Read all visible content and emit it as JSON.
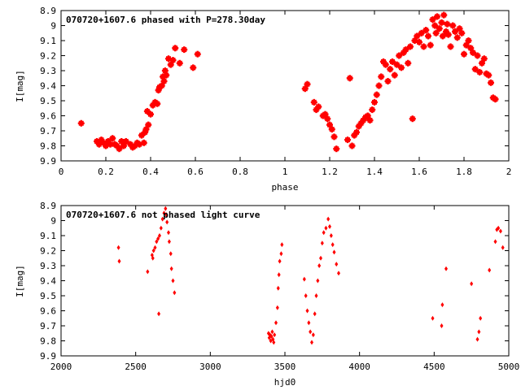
{
  "chart_data": [
    {
      "type": "scatter",
      "title": "070720+1607.6 phased with P=278.30day",
      "xlabel": "phase",
      "ylabel": "I[mag]",
      "xlim": [
        0,
        2
      ],
      "ylim": [
        9.9,
        8.9
      ],
      "y_inverted": true,
      "grid": false,
      "marker": "star",
      "marker_color": "#ff0000",
      "x_ticks": [
        "0",
        "0.2",
        "0.4",
        "0.6",
        "0.8",
        "1",
        "1.2",
        "1.4",
        "1.6",
        "1.8",
        "2"
      ],
      "y_ticks": [
        "8.9",
        "9",
        "9.1",
        "9.2",
        "9.3",
        "9.4",
        "9.5",
        "9.6",
        "9.7",
        "9.8",
        "9.9"
      ],
      "points": [
        [
          0.09,
          9.65
        ],
        [
          0.16,
          9.77
        ],
        [
          0.17,
          9.79
        ],
        [
          0.18,
          9.76
        ],
        [
          0.19,
          9.78
        ],
        [
          0.2,
          9.8
        ],
        [
          0.21,
          9.77
        ],
        [
          0.22,
          9.79
        ],
        [
          0.23,
          9.75
        ],
        [
          0.24,
          9.79
        ],
        [
          0.25,
          9.8
        ],
        [
          0.26,
          9.82
        ],
        [
          0.27,
          9.77
        ],
        [
          0.28,
          9.8
        ],
        [
          0.29,
          9.77
        ],
        [
          0.31,
          9.79
        ],
        [
          0.32,
          9.81
        ],
        [
          0.33,
          9.8
        ],
        [
          0.34,
          9.78
        ],
        [
          0.35,
          9.79
        ],
        [
          0.36,
          9.73
        ],
        [
          0.37,
          9.78
        ],
        [
          0.375,
          9.71
        ],
        [
          0.38,
          9.69
        ],
        [
          0.39,
          9.66
        ],
        [
          0.385,
          9.57
        ],
        [
          0.4,
          9.59
        ],
        [
          0.41,
          9.53
        ],
        [
          0.42,
          9.51
        ],
        [
          0.43,
          9.52
        ],
        [
          0.435,
          9.43
        ],
        [
          0.44,
          9.41
        ],
        [
          0.45,
          9.4
        ],
        [
          0.455,
          9.34
        ],
        [
          0.46,
          9.37
        ],
        [
          0.465,
          9.3
        ],
        [
          0.47,
          9.33
        ],
        [
          0.48,
          9.22
        ],
        [
          0.49,
          9.26
        ],
        [
          0.5,
          9.23
        ],
        [
          0.51,
          9.15
        ],
        [
          0.53,
          9.25
        ],
        [
          0.55,
          9.16
        ],
        [
          0.59,
          9.28
        ],
        [
          0.61,
          9.19
        ],
        [
          1.09,
          9.42
        ],
        [
          1.1,
          9.39
        ],
        [
          1.13,
          9.51
        ],
        [
          1.14,
          9.56
        ],
        [
          1.15,
          9.54
        ],
        [
          1.17,
          9.6
        ],
        [
          1.18,
          9.59
        ],
        [
          1.19,
          9.62
        ],
        [
          1.2,
          9.66
        ],
        [
          1.21,
          9.69
        ],
        [
          1.22,
          9.74
        ],
        [
          1.23,
          9.82
        ],
        [
          1.28,
          9.76
        ],
        [
          1.29,
          9.35
        ],
        [
          1.3,
          9.8
        ],
        [
          1.31,
          9.73
        ],
        [
          1.32,
          9.71
        ],
        [
          1.33,
          9.67
        ],
        [
          1.34,
          9.65
        ],
        [
          1.35,
          9.63
        ],
        [
          1.36,
          9.61
        ],
        [
          1.37,
          9.6
        ],
        [
          1.38,
          9.63
        ],
        [
          1.39,
          9.56
        ],
        [
          1.4,
          9.51
        ],
        [
          1.41,
          9.46
        ],
        [
          1.42,
          9.4
        ],
        [
          1.43,
          9.34
        ],
        [
          1.44,
          9.24
        ],
        [
          1.45,
          9.26
        ],
        [
          1.46,
          9.37
        ],
        [
          1.47,
          9.29
        ],
        [
          1.48,
          9.24
        ],
        [
          1.49,
          9.33
        ],
        [
          1.5,
          9.26
        ],
        [
          1.51,
          9.2
        ],
        [
          1.52,
          9.28
        ],
        [
          1.53,
          9.18
        ],
        [
          1.54,
          9.16
        ],
        [
          1.55,
          9.25
        ],
        [
          1.56,
          9.14
        ],
        [
          1.57,
          9.62
        ],
        [
          1.58,
          9.1
        ],
        [
          1.59,
          9.07
        ],
        [
          1.6,
          9.11
        ],
        [
          1.61,
          9.05
        ],
        [
          1.62,
          9.14
        ],
        [
          1.63,
          9.03
        ],
        [
          1.64,
          9.07
        ],
        [
          1.65,
          9.13
        ],
        [
          1.66,
          8.96
        ],
        [
          1.67,
          9.0
        ],
        [
          1.675,
          9.05
        ],
        [
          1.68,
          8.94
        ],
        [
          1.69,
          9.02
        ],
        [
          1.7,
          8.98
        ],
        [
          1.705,
          9.07
        ],
        [
          1.71,
          8.93
        ],
        [
          1.72,
          9.04
        ],
        [
          1.725,
          8.99
        ],
        [
          1.73,
          9.06
        ],
        [
          1.74,
          9.14
        ],
        [
          1.75,
          9.0
        ],
        [
          1.76,
          9.04
        ],
        [
          1.77,
          9.08
        ],
        [
          1.78,
          9.02
        ],
        [
          1.79,
          9.05
        ],
        [
          1.8,
          9.19
        ],
        [
          1.81,
          9.13
        ],
        [
          1.82,
          9.1
        ],
        [
          1.83,
          9.15
        ],
        [
          1.84,
          9.18
        ],
        [
          1.85,
          9.29
        ],
        [
          1.86,
          9.2
        ],
        [
          1.87,
          9.31
        ],
        [
          1.88,
          9.25
        ],
        [
          1.89,
          9.22
        ],
        [
          1.9,
          9.32
        ],
        [
          1.91,
          9.33
        ],
        [
          1.92,
          9.38
        ],
        [
          1.93,
          9.48
        ],
        [
          1.94,
          9.49
        ]
      ]
    },
    {
      "type": "scatter",
      "title": "070720+1607.6 not phased light curve",
      "xlabel": "hjd0",
      "ylabel": "I[mag]",
      "xlim": [
        2000,
        5000
      ],
      "ylim": [
        9.9,
        8.9
      ],
      "y_inverted": true,
      "grid": false,
      "marker": "diamond",
      "marker_color": "#ff0000",
      "x_ticks": [
        "2000",
        "2500",
        "3000",
        "3500",
        "4000",
        "4500",
        "5000"
      ],
      "y_ticks": [
        "8.9",
        "9",
        "9.1",
        "9.2",
        "9.3",
        "9.4",
        "9.5",
        "9.6",
        "9.7",
        "9.8",
        "9.9"
      ],
      "points": [
        [
          2385,
          9.18
        ],
        [
          2390,
          9.27
        ],
        [
          2580,
          9.34
        ],
        [
          2610,
          9.23
        ],
        [
          2615,
          9.25
        ],
        [
          2620,
          9.2
        ],
        [
          2630,
          9.18
        ],
        [
          2640,
          9.14
        ],
        [
          2650,
          9.12
        ],
        [
          2655,
          9.62
        ],
        [
          2660,
          9.1
        ],
        [
          2670,
          9.05
        ],
        [
          2680,
          8.99
        ],
        [
          2690,
          8.95
        ],
        [
          2700,
          8.92
        ],
        [
          2705,
          8.96
        ],
        [
          2710,
          9.01
        ],
        [
          2720,
          9.08
        ],
        [
          2725,
          9.14
        ],
        [
          2735,
          9.22
        ],
        [
          2740,
          9.32
        ],
        [
          2750,
          9.4
        ],
        [
          2760,
          9.48
        ],
        [
          3390,
          9.75
        ],
        [
          3395,
          9.78
        ],
        [
          3400,
          9.76
        ],
        [
          3405,
          9.8
        ],
        [
          3410,
          9.77
        ],
        [
          3415,
          9.74
        ],
        [
          3420,
          9.79
        ],
        [
          3425,
          9.81
        ],
        [
          3430,
          9.76
        ],
        [
          3440,
          9.68
        ],
        [
          3450,
          9.58
        ],
        [
          3455,
          9.45
        ],
        [
          3460,
          9.36
        ],
        [
          3465,
          9.27
        ],
        [
          3475,
          9.22
        ],
        [
          3480,
          9.16
        ],
        [
          3630,
          9.39
        ],
        [
          3640,
          9.5
        ],
        [
          3650,
          9.6
        ],
        [
          3660,
          9.68
        ],
        [
          3670,
          9.74
        ],
        [
          3680,
          9.81
        ],
        [
          3690,
          9.76
        ],
        [
          3700,
          9.62
        ],
        [
          3710,
          9.5
        ],
        [
          3720,
          9.4
        ],
        [
          3730,
          9.3
        ],
        [
          3740,
          9.25
        ],
        [
          3750,
          9.15
        ],
        [
          3760,
          9.08
        ],
        [
          3775,
          9.05
        ],
        [
          3790,
          8.99
        ],
        [
          3800,
          9.04
        ],
        [
          3810,
          9.1
        ],
        [
          3820,
          9.16
        ],
        [
          3830,
          9.21
        ],
        [
          3845,
          9.29
        ],
        [
          3860,
          9.35
        ],
        [
          4490,
          9.65
        ],
        [
          4550,
          9.7
        ],
        [
          4555,
          9.56
        ],
        [
          4580,
          9.32
        ],
        [
          4750,
          9.42
        ],
        [
          4790,
          9.79
        ],
        [
          4800,
          9.74
        ],
        [
          4810,
          9.65
        ],
        [
          4870,
          9.33
        ],
        [
          4910,
          9.14
        ],
        [
          4920,
          9.06
        ],
        [
          4930,
          9.05
        ],
        [
          4945,
          9.07
        ],
        [
          4960,
          9.18
        ]
      ]
    }
  ]
}
